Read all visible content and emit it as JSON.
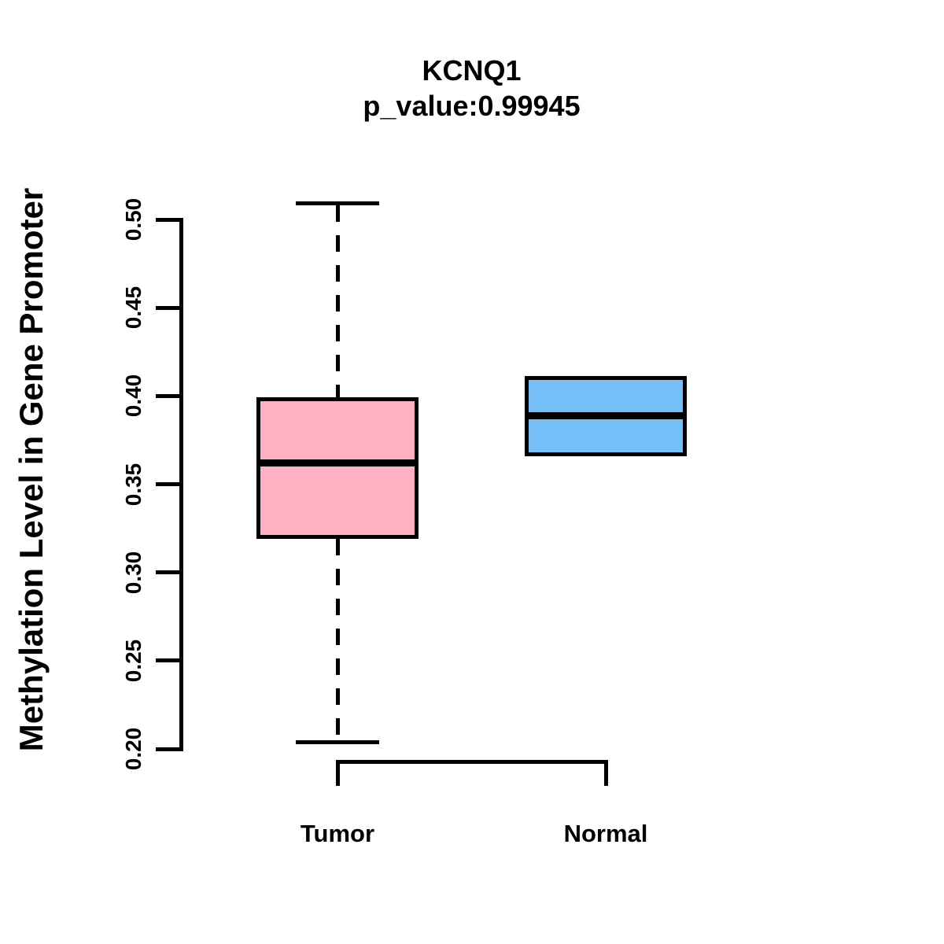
{
  "page": {
    "background_color": "#FFFFFF",
    "text_color": "#000000"
  },
  "chart_data": {
    "type": "boxplot",
    "title": "KCNQ1",
    "subtitle": "p_value:0.99945",
    "p_value": 0.99945,
    "ylabel": "Methylation Level in Gene Promoter",
    "xlabel": "",
    "ylim": [
      0.2,
      0.5
    ],
    "ytick_labels": [
      "0.20",
      "0.25",
      "0.30",
      "0.35",
      "0.40",
      "0.45",
      "0.50"
    ],
    "ytick_values": [
      0.2,
      0.25,
      0.3,
      0.35,
      0.4,
      0.45,
      0.5
    ],
    "grid": false,
    "legend": "none",
    "axis_color": "#000000",
    "categories": [
      "Tumor",
      "Normal"
    ],
    "groups": [
      {
        "label": "Tumor",
        "fill_color": "#FFB1C1",
        "border_color": "#000000",
        "whisker_low": 0.204,
        "q1": 0.32,
        "median": 0.362,
        "q3": 0.398,
        "whisker_high": 0.509,
        "whiskers_visible": true,
        "outliers": []
      },
      {
        "label": "Normal",
        "fill_color": "#74BFF7",
        "border_color": "#000000",
        "whisker_low": 0.367,
        "q1": 0.367,
        "median": 0.389,
        "q3": 0.41,
        "whisker_high": 0.41,
        "whiskers_visible": false,
        "outliers": []
      }
    ]
  }
}
